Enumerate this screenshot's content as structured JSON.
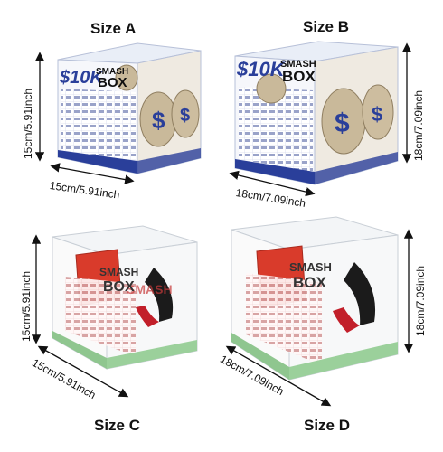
{
  "panels": [
    {
      "label": "Size A",
      "width_dim": "15cm/5.91inch",
      "height_dim": "15cm/5.91inch",
      "variant": "printed-box",
      "brand_top": "$10K",
      "brand_mid": "SMASH",
      "brand_bottom": "BOX"
    },
    {
      "label": "Size B",
      "width_dim": "18cm/7.09inch",
      "height_dim": "18cm/7.09inch",
      "variant": "printed-box",
      "brand_top": "$10K",
      "brand_mid": "SMASH",
      "brand_bottom": "BOX"
    },
    {
      "label": "Size C",
      "width_dim": "15cm/5.91inch",
      "height_dim": "15cm/5.91inch",
      "variant": "clear-box",
      "brand_mid": "SMASH",
      "brand_bottom": "BOX"
    },
    {
      "label": "Size D",
      "width_dim": "18cm/7.09inch",
      "height_dim": "18cm/7.09inch",
      "variant": "clear-box",
      "brand_mid": "SMASH",
      "brand_bottom": "BOX"
    }
  ],
  "colors": {
    "print_blue": "#2a3f9a",
    "bag_tan": "#c9b99a",
    "money_green": "#8fc68f",
    "text_dark": "#111111"
  }
}
